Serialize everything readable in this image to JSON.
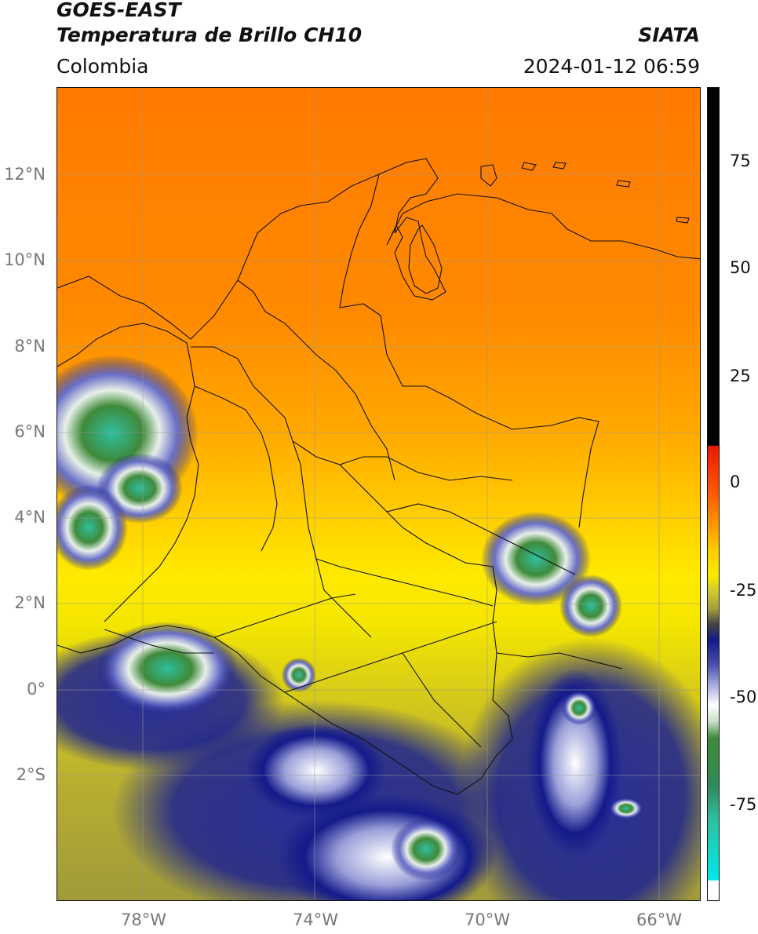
{
  "header": {
    "satellite": "GOES-EAST",
    "product": "Temperatura de Brillo CH10",
    "agency": "SIATA",
    "region": "Colombia",
    "datetime": "2024-01-12 06:59"
  },
  "axes": {
    "lat_labels": [
      "12°N",
      "10°N",
      "8°N",
      "6°N",
      "4°N",
      "2°N",
      "0°",
      "2°S"
    ],
    "lon_labels": [
      "78°W",
      "74°W",
      "70°W",
      "66°W"
    ]
  },
  "colorbar": {
    "ticks": [
      "75",
      "50",
      "25",
      "0",
      "-25",
      "-50",
      "-75"
    ],
    "colors": {
      "black": "#000000",
      "red": "#e81a00",
      "orange": "#ff8a00",
      "yellow": "#ffea00",
      "olive": "#a8a33a",
      "navy": "#141a8a",
      "white": "#ffffff",
      "green": "#3f8a3a",
      "teal": "#2fbfa0",
      "cyan": "#00e8ea"
    }
  }
}
